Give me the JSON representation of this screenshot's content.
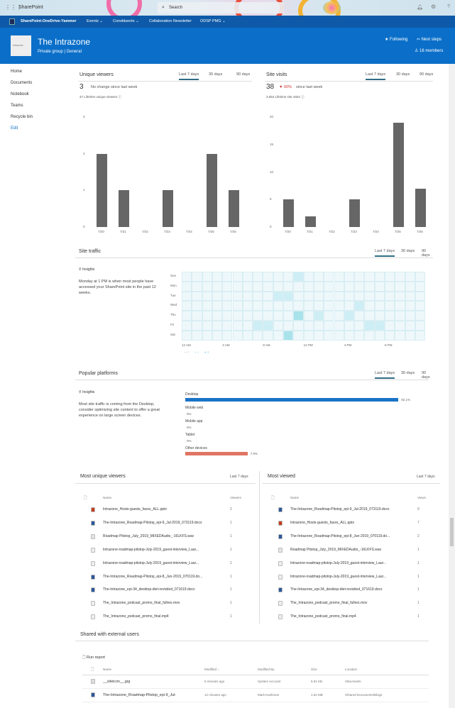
{
  "topbar": {
    "app": "SharePoint",
    "search_placeholder": "Search"
  },
  "navbar": {
    "hub": "SharePoint-OneDrive-Yammer",
    "items": [
      "Events",
      "Constituents",
      "Collaboration Newsletter",
      "ODSP PMG"
    ]
  },
  "site": {
    "title": "The Intrazone",
    "subtitle": "Private group | General",
    "logo_text": "Intrazone",
    "following": "Following",
    "next_steps": "Next steps",
    "members": "16 members"
  },
  "leftnav": [
    "Home",
    "Documents",
    "Notebook",
    "Teams",
    "Recycle bin",
    "Edit"
  ],
  "tabs": [
    "Last 7 days",
    "30 days",
    "90 days"
  ],
  "unique_viewers": {
    "title": "Unique viewers",
    "value": "3",
    "change": "No change since last week",
    "lifetime": "47 Lifetime unique viewers"
  },
  "site_visits": {
    "title": "Site visits",
    "value": "38",
    "change_pct": "60%",
    "change_text": "since last week",
    "lifetime": "3,064 Lifetime site visits"
  },
  "chart_data": [
    {
      "type": "bar",
      "categories": [
        "7/20",
        "7/21",
        "7/22",
        "7/23",
        "7/24",
        "7/25",
        "7/26"
      ],
      "values": [
        2,
        1,
        0,
        1,
        0,
        2,
        1
      ],
      "ylim": [
        0,
        3
      ],
      "yticks": [
        "0",
        "1",
        "2",
        "3"
      ]
    },
    {
      "type": "bar",
      "categories": [
        "7/20",
        "7/21",
        "7/22",
        "7/23",
        "7/24",
        "7/25",
        "7/26"
      ],
      "values": [
        5,
        2,
        0,
        5,
        0,
        19,
        7
      ],
      "ylim": [
        0,
        20
      ],
      "yticks": [
        "0",
        "5",
        "10",
        "15",
        "20"
      ]
    },
    {
      "type": "heatmap",
      "days": [
        "Sun",
        "Mon",
        "Tue",
        "Wed",
        "Thu",
        "Fri",
        "Sat"
      ],
      "xticks": [
        "12 AM",
        "4 AM",
        "8 AM",
        "12 PM",
        "4 PM",
        "8 PM"
      ],
      "legend": [
        "0",
        "1",
        "2"
      ],
      "cells": [
        {
          "day": "Sun",
          "hour": 11,
          "value": 1
        },
        {
          "day": "Tue",
          "hour": 9,
          "value": 1
        },
        {
          "day": "Tue",
          "hour": 10,
          "value": 1
        },
        {
          "day": "Wed",
          "hour": 17,
          "value": 1
        },
        {
          "day": "Thu",
          "hour": 11,
          "value": 2
        },
        {
          "day": "Thu",
          "hour": 13,
          "value": 1
        },
        {
          "day": "Thu",
          "hour": 16,
          "value": 1
        },
        {
          "day": "Fri",
          "hour": 7,
          "value": 1
        },
        {
          "day": "Fri",
          "hour": 8,
          "value": 1
        },
        {
          "day": "Fri",
          "hour": 18,
          "value": 1
        },
        {
          "day": "Fri",
          "hour": 19,
          "value": 1
        },
        {
          "day": "Sat",
          "hour": 10,
          "value": 2
        }
      ]
    }
  ],
  "site_traffic": {
    "title": "Site traffic",
    "insights": "Insights",
    "text": "Monday at 1 PM is when most people have accessed your SharePoint site in the past 12 weeks."
  },
  "platforms": {
    "title": "Popular platforms",
    "insights": "Insights",
    "text": "Most site traffic is coming from the Desktop, consider optimizing site content to offer a great experience on large screen devices.",
    "items": [
      {
        "name": "Desktop",
        "pct": "92.1%",
        "value": 92.1,
        "color": "#1b73c6"
      },
      {
        "name": "Mobile web",
        "pct": "0%",
        "value": 0
      },
      {
        "name": "Mobile app",
        "pct": "0%",
        "value": 0
      },
      {
        "name": "Tablet",
        "pct": "0%",
        "value": 0
      },
      {
        "name": "Other devices",
        "pct": "7.9%",
        "value": 7.9,
        "color": "#e07462"
      }
    ]
  },
  "most_unique": {
    "title": "Most unique viewers",
    "period": "Last 7 days",
    "col_name": "Name",
    "col_val": "Viewers",
    "rows": [
      [
        "Intrazone_Hosts-guests_faces_ALL.pptx",
        "2",
        "ppt"
      ],
      [
        "The-Intrazone_Roadmap-Pitstop_epi-9_Jul-2019_073119.docx",
        "1",
        "doc"
      ],
      [
        "Roadmap Pitstop_July_2019_MIXEDAudio_-16LKFS.wav",
        "1",
        "aud"
      ],
      [
        "Intrazone-roadmap-pitstop-July-2019_guest-interview_Laur...",
        "1",
        "vid"
      ],
      [
        "Intrazone-roadmap-pitstop-July-2019_guest-interview_Laur...",
        "1",
        "vid"
      ],
      [
        "The-Intrazone_Roadmap-Pitstop_epi-8_Jun-2019_070119.do...",
        "1",
        "doc"
      ],
      [
        "The-Intrazone_epi-34_desktop-diet-revisited_071619.docx",
        "1",
        "doc"
      ],
      [
        "The_Intrazone_podcast_promo_final_fullres.mov",
        "1",
        "vid"
      ],
      [
        "The_Intrazone_podcast_promo_final.mp4",
        "1",
        "vid"
      ]
    ]
  },
  "most_viewed": {
    "title": "Most viewed",
    "period": "Last 7 days",
    "col_name": "Name",
    "col_val": "Views",
    "rows": [
      [
        "The-Intrazone_Roadmap-Pitstop_epi-9_Jul-2019_073119.docx",
        "9",
        "doc"
      ],
      [
        "Intrazone_Hosts-guests_faces_ALL.pptx",
        "7",
        "ppt"
      ],
      [
        "The-Intrazone_Roadmap-Pitstop_epi-8_Jun-2019_070119.do...",
        "2",
        "doc"
      ],
      [
        "Roadmap Pitstop_July_2019_MIXEDAudio_-16LKFS.wav",
        "1",
        "aud"
      ],
      [
        "Intrazone-roadmap-pitstop-July-2019_guest-interview_Laur...",
        "1",
        "vid"
      ],
      [
        "Intrazone-roadmap-pitstop-July-2019_guest-interview_Laur...",
        "1",
        "vid"
      ],
      [
        "The-Intrazone_epi-34_desktop-diet-revisited_071619.docx",
        "1",
        "doc"
      ],
      [
        "The_Intrazone_podcast_promo_final_fullres.mov",
        "1",
        "vid"
      ],
      [
        "The_Intrazone_podcast_promo_final.mp4",
        "1",
        "vid"
      ]
    ]
  },
  "shared": {
    "title": "Shared with external users",
    "run_report": "Run report",
    "cols": [
      "Name",
      "Modified ↓",
      "Modified By",
      "Size",
      "Location"
    ],
    "rows": [
      [
        "__siteicon__.jpg",
        "6 minutes ago",
        "System Account",
        "5.81 KB",
        "/SiteAssets",
        "img"
      ],
      [
        "The-Intrazone_Roadmap-Pitstop_epi-9_Jul-",
        "12 minutes ago",
        "Mark Kashman",
        "1.54 MB",
        "/Shared Documents/Blogs",
        "doc"
      ]
    ]
  }
}
